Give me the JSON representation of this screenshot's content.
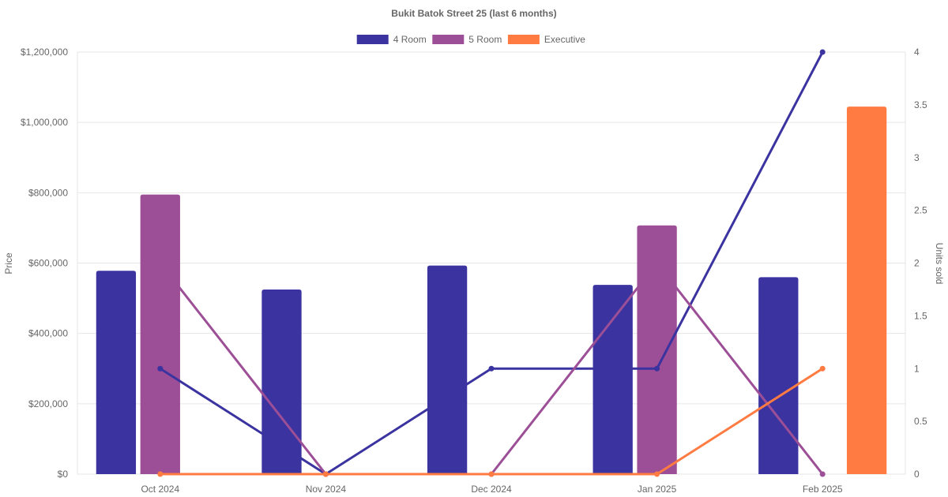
{
  "chart_data": {
    "type": "bar",
    "title": "Bukit Batok Street 25 (last 6 months)",
    "categories": [
      "Oct 2024",
      "Nov 2024",
      "Dec 2024",
      "Jan 2025",
      "Feb 2025"
    ],
    "legend_placement": "top-center",
    "grid": true,
    "y_left": {
      "label": "Price",
      "range": [
        0,
        1200000
      ],
      "ticks": [
        "$0",
        "$200,000",
        "$400,000",
        "$600,000",
        "$800,000",
        "$1,000,000",
        "$1,200,000"
      ]
    },
    "y_right": {
      "label": "Units sold",
      "range": [
        0,
        4
      ],
      "ticks": [
        "0",
        "0.5",
        "1",
        "1.5",
        "2",
        "2.5",
        "3",
        "3.5",
        "4"
      ]
    },
    "series": [
      {
        "name": "4 Room",
        "color": "#3a33a0",
        "price": [
          578000,
          525000,
          593000,
          538000,
          560000
        ],
        "units": [
          1,
          0,
          1,
          1,
          4
        ]
      },
      {
        "name": "5 Room",
        "color": "#9c4f96",
        "price": [
          795000,
          null,
          null,
          707000,
          null
        ],
        "units": [
          2,
          0,
          0,
          2,
          0
        ]
      },
      {
        "name": "Executive",
        "color": "#ff7b41",
        "price": [
          null,
          null,
          null,
          null,
          1045000
        ],
        "units": [
          0,
          0,
          0,
          0,
          1
        ]
      }
    ]
  }
}
